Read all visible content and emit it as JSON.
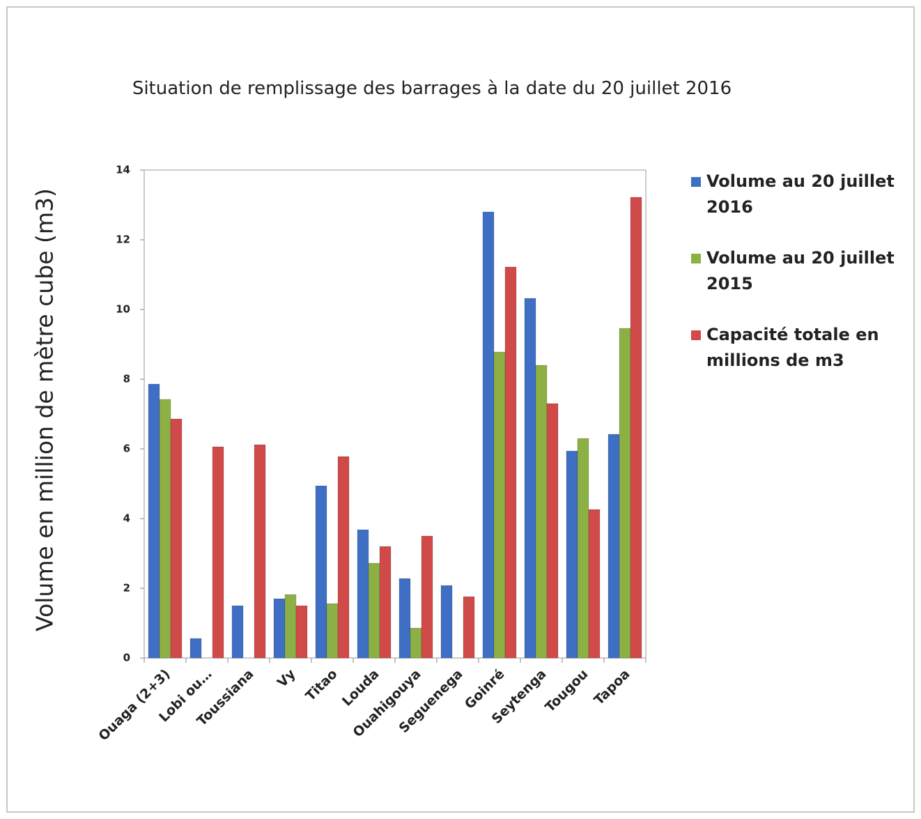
{
  "chart_data": {
    "type": "bar",
    "title": "Situation de remplissage des barrages à la date du 20 juillet 2016",
    "y_label": "Volume en million de mètre cube (m3)",
    "categories": [
      "Ouaga (2+3)",
      "Lobi ou…",
      "Toussiana",
      "Vy",
      "Titao",
      "Louda",
      "Ouahigouya",
      "Seguenega",
      "Goinré",
      "Seytenga",
      "Tougou",
      "Tapoa"
    ],
    "series": [
      {
        "name": "Volume au 20 juillet 2016",
        "color": "#3f6fc4",
        "values": [
          7.86,
          0.56,
          1.5,
          1.7,
          4.94,
          3.68,
          2.28,
          2.08,
          12.8,
          10.32,
          5.94,
          6.42
        ]
      },
      {
        "name": "Volume au 20 juillet 2015",
        "color": "#8db045",
        "values": [
          7.42,
          null,
          null,
          1.82,
          1.56,
          2.72,
          0.86,
          null,
          8.78,
          8.4,
          6.3,
          9.46
        ]
      },
      {
        "name": "Capacité totale en millions de m3",
        "color": "#d04a49",
        "values": [
          6.86,
          6.06,
          6.12,
          1.5,
          5.78,
          3.2,
          3.5,
          1.76,
          11.22,
          7.3,
          4.26,
          13.22
        ]
      }
    ],
    "ylim": [
      0,
      14
    ],
    "yticks": [
      0,
      2,
      4,
      6,
      8,
      10,
      12,
      14
    ],
    "legend": "right"
  }
}
